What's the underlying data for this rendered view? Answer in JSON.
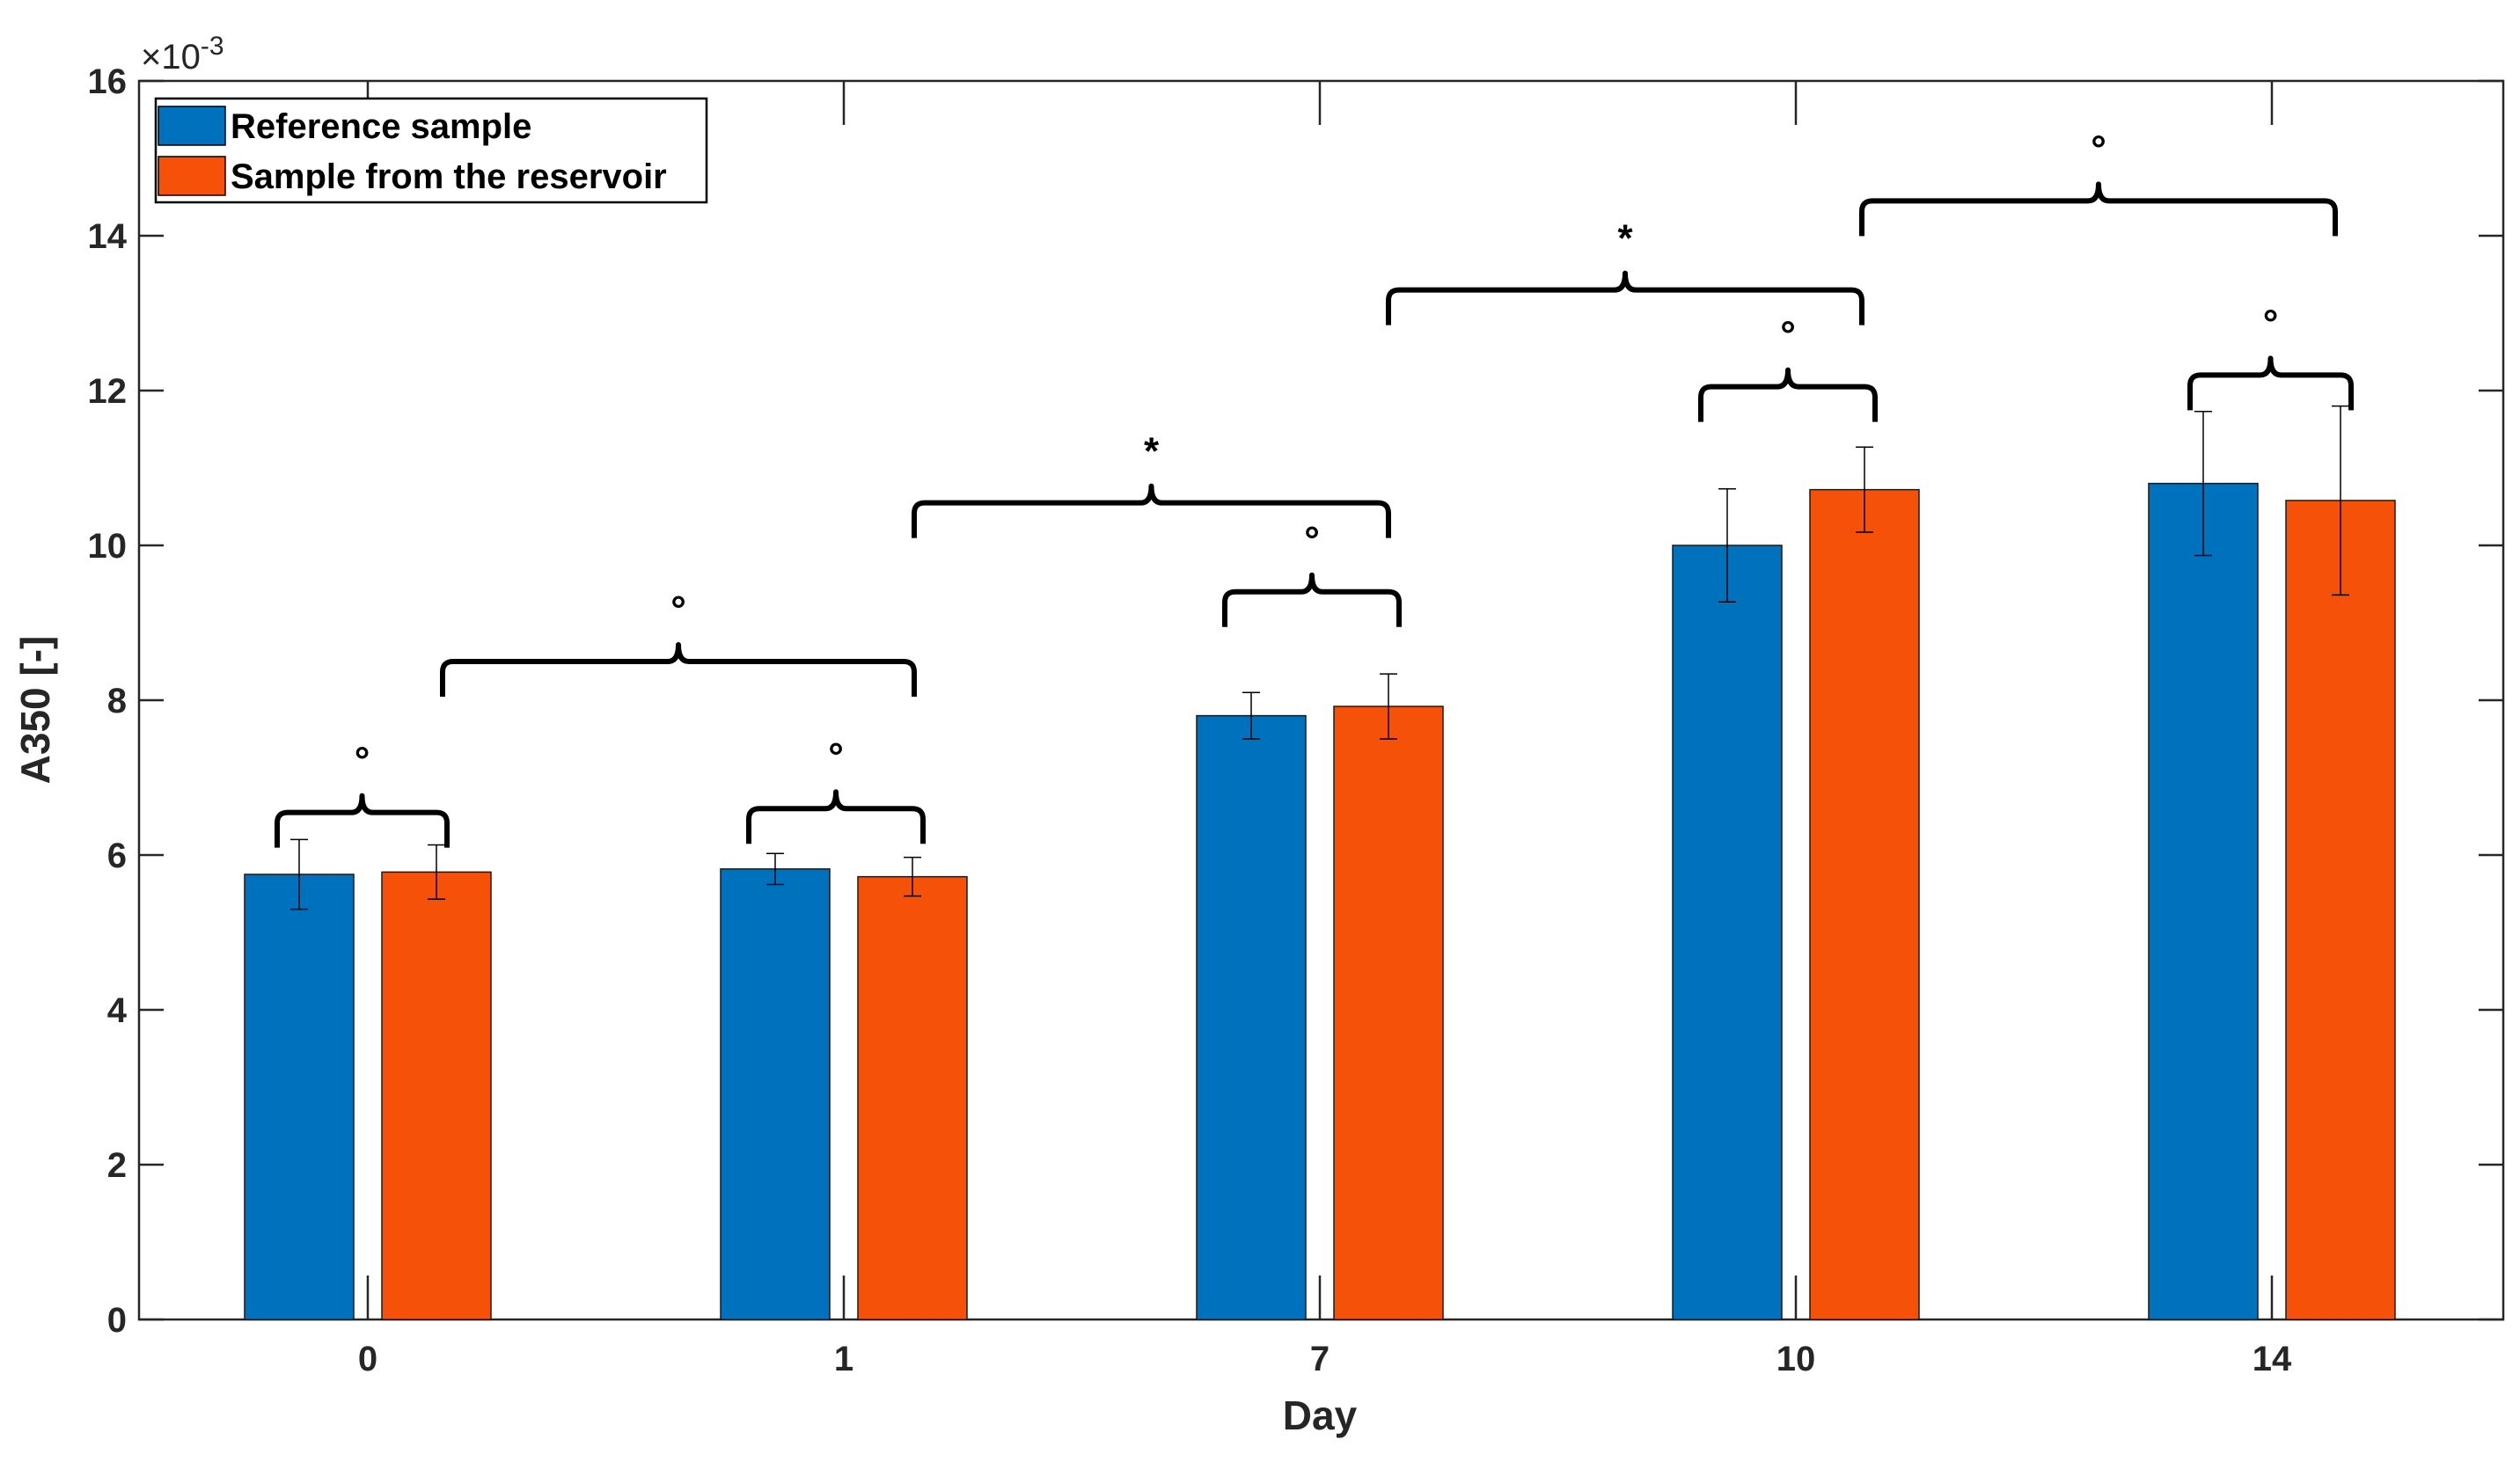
{
  "chart_data": {
    "type": "bar",
    "title": "",
    "xlabel": "Day",
    "ylabel": "A350 [-]",
    "y_scale_label": {
      "base": "×10",
      "exponent": "-3"
    },
    "ylim": [
      0,
      16
    ],
    "yticks": [
      "0",
      "2",
      "4",
      "6",
      "8",
      "10",
      "12",
      "14",
      "16"
    ],
    "categories": [
      "0",
      "1",
      "7",
      "10",
      "14"
    ],
    "series": [
      {
        "name": "Reference sample",
        "color": "#0072BD",
        "values": [
          5.75,
          5.82,
          7.8,
          10.0,
          10.8
        ],
        "errors": [
          0.45,
          0.2,
          0.3,
          0.73,
          0.93
        ]
      },
      {
        "name": "Sample from the reservoir",
        "color": "#F55108",
        "values": [
          5.78,
          5.72,
          7.92,
          10.72,
          10.58
        ],
        "errors": [
          0.35,
          0.25,
          0.42,
          0.55,
          1.22
        ]
      }
    ],
    "legend_position": "top-left",
    "significance": [
      {
        "label": "°",
        "level": 6.55
      },
      {
        "label": "°",
        "level": 8.5
      },
      {
        "label": "°",
        "level": 6.6
      },
      {
        "label": "*",
        "level": 10.55
      },
      {
        "label": "°",
        "level": 9.4
      },
      {
        "label": "*",
        "level": 13.3
      },
      {
        "label": "°",
        "level": 12.05
      },
      {
        "label": "°",
        "level": 14.45
      },
      {
        "label": "°",
        "level": 12.2
      }
    ]
  }
}
